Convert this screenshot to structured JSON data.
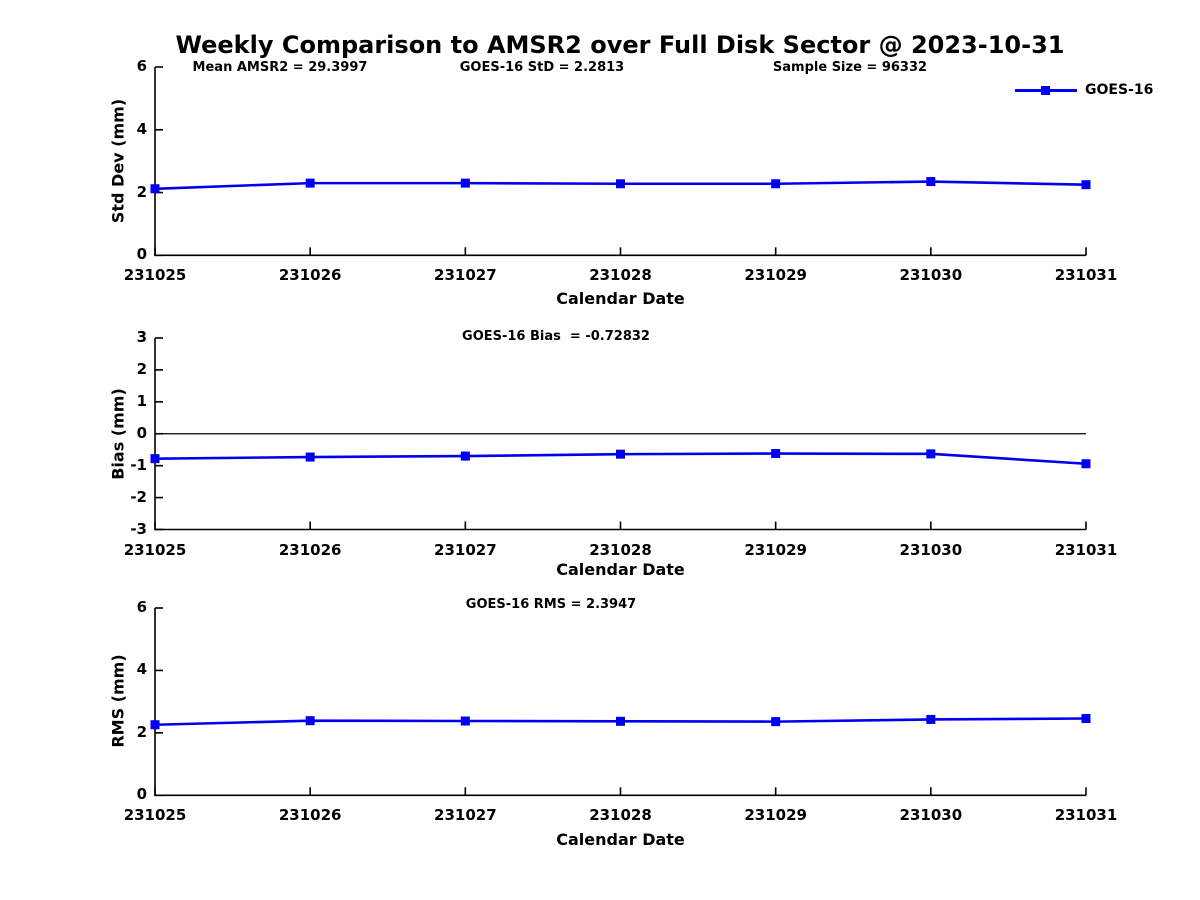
{
  "figure": {
    "title": "Weekly Comparison to AMSR2 over Full Disk Sector @ 2023-10-31",
    "background": "#ffffff"
  },
  "legend": {
    "label": "GOES-16",
    "color": "#0000ee"
  },
  "stats": {
    "mean_amsr2": "29.3997",
    "goes16_std": "2.2813",
    "sample_size": "96332",
    "goes16_bias": "-0.72832",
    "goes16_rms": "2.3947"
  },
  "chart_data": [
    {
      "type": "line",
      "categories": [
        "231025",
        "231026",
        "231027",
        "231028",
        "231029",
        "231030",
        "231031"
      ],
      "series": [
        {
          "name": "GOES-16",
          "values": [
            2.12,
            2.3,
            2.3,
            2.28,
            2.28,
            2.35,
            2.25
          ]
        }
      ],
      "xlabel": "Calendar Date",
      "ylabel": "Std Dev (mm)",
      "ylim": [
        0,
        6
      ],
      "yticks": [
        0,
        2,
        4,
        6
      ],
      "zero_line": false,
      "grid": false,
      "legend_position": "upper-right-outside",
      "line_color": "#0000ee",
      "marker": "square",
      "annotations": [
        "Mean AMSR2 = 29.3997",
        "GOES-16 StD = 2.2813",
        "Sample Size = 96332"
      ]
    },
    {
      "type": "line",
      "categories": [
        "231025",
        "231026",
        "231027",
        "231028",
        "231029",
        "231030",
        "231031"
      ],
      "series": [
        {
          "name": "GOES-16",
          "values": [
            -0.78,
            -0.73,
            -0.7,
            -0.64,
            -0.62,
            -0.63,
            -0.94
          ]
        }
      ],
      "xlabel": "Calendar Date",
      "ylabel": "Bias (mm)",
      "ylim": [
        -3,
        3
      ],
      "yticks": [
        -3,
        -2,
        -1,
        0,
        1,
        2,
        3
      ],
      "zero_line": true,
      "grid": false,
      "line_color": "#0000ee",
      "marker": "square",
      "annotations": [
        "GOES-16 Bias  = -0.72832"
      ]
    },
    {
      "type": "line",
      "categories": [
        "231025",
        "231026",
        "231027",
        "231028",
        "231029",
        "231030",
        "231031"
      ],
      "series": [
        {
          "name": "GOES-16",
          "values": [
            2.26,
            2.39,
            2.38,
            2.37,
            2.36,
            2.43,
            2.46
          ]
        }
      ],
      "xlabel": "Calendar Date",
      "ylabel": "RMS (mm)",
      "ylim": [
        0,
        6
      ],
      "yticks": [
        0,
        2,
        4,
        6
      ],
      "zero_line": false,
      "grid": false,
      "line_color": "#0000ee",
      "marker": "square",
      "annotations": [
        "GOES-16 RMS = 2.3947"
      ]
    }
  ]
}
